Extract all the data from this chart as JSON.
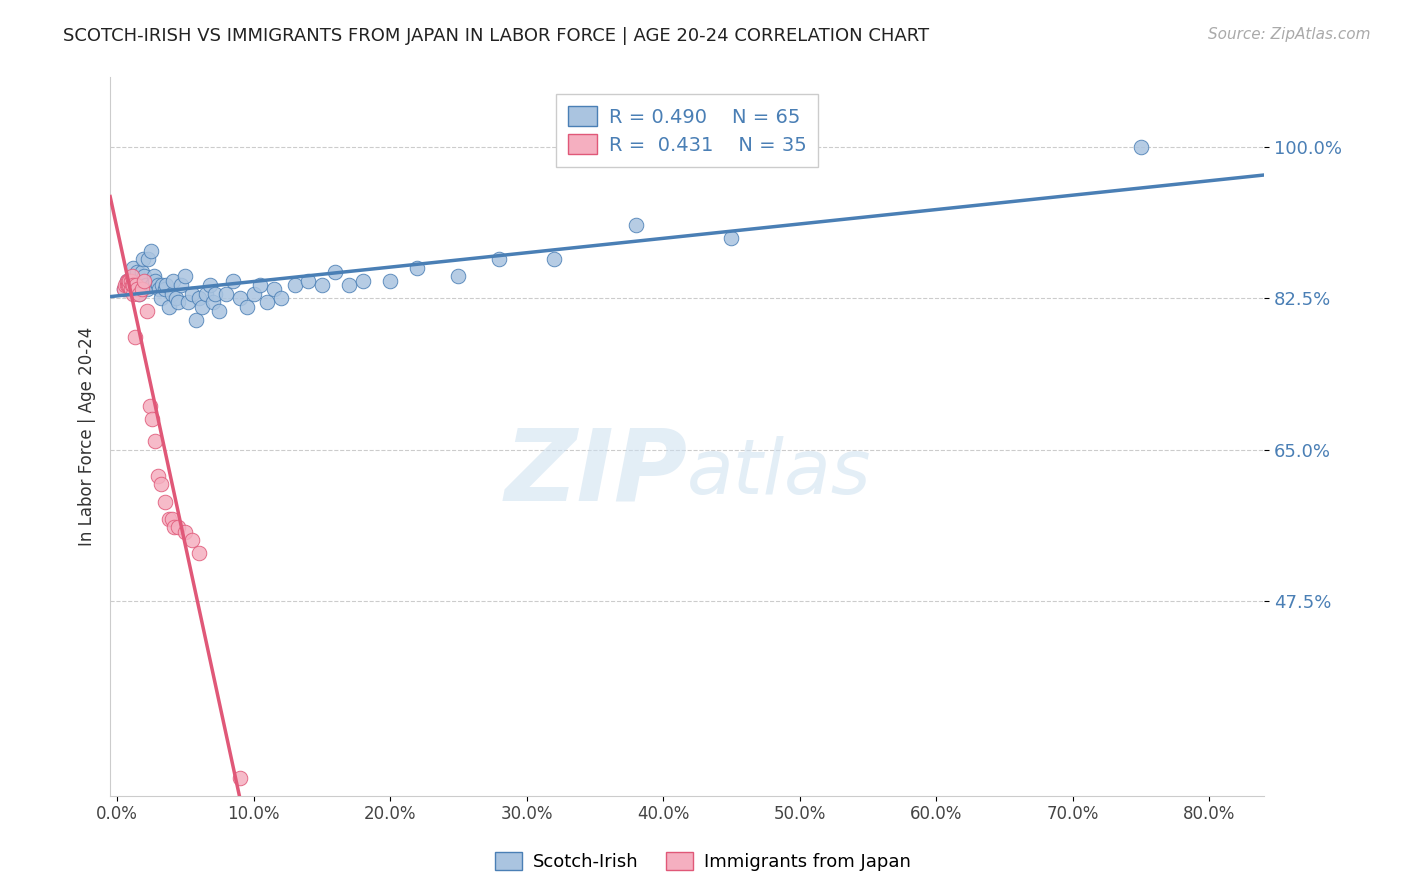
{
  "title": "SCOTCH-IRISH VS IMMIGRANTS FROM JAPAN IN LABOR FORCE | AGE 20-24 CORRELATION CHART",
  "source": "Source: ZipAtlas.com",
  "ylabel": "In Labor Force | Age 20-24",
  "x_ticks": [
    "0.0%",
    "10.0%",
    "20.0%",
    "30.0%",
    "40.0%",
    "50.0%",
    "60.0%",
    "70.0%",
    "80.0%"
  ],
  "x_tick_vals": [
    0.0,
    0.1,
    0.2,
    0.3,
    0.4,
    0.5,
    0.6,
    0.7,
    0.8
  ],
  "y_ticks": [
    "47.5%",
    "65.0%",
    "82.5%",
    "100.0%"
  ],
  "y_tick_vals": [
    0.475,
    0.65,
    0.825,
    1.0
  ],
  "y_min": 0.25,
  "y_max": 1.08,
  "x_min": -0.005,
  "x_max": 0.84,
  "legend_blue_label": "Scotch-Irish",
  "legend_pink_label": "Immigrants from Japan",
  "blue_R": "0.490",
  "blue_N": "65",
  "pink_R": "0.431",
  "pink_N": "35",
  "blue_color": "#aac4e0",
  "pink_color": "#f5afc0",
  "blue_line_color": "#4a7fb5",
  "pink_line_color": "#e05878",
  "watermark_zip": "ZIP",
  "watermark_atlas": "atlas",
  "blue_scatter_x": [
    0.005,
    0.007,
    0.008,
    0.012,
    0.013,
    0.014,
    0.015,
    0.016,
    0.017,
    0.018,
    0.019,
    0.02,
    0.021,
    0.022,
    0.023,
    0.025,
    0.026,
    0.027,
    0.028,
    0.03,
    0.031,
    0.032,
    0.033,
    0.035,
    0.036,
    0.038,
    0.04,
    0.041,
    0.043,
    0.045,
    0.047,
    0.05,
    0.052,
    0.055,
    0.058,
    0.06,
    0.062,
    0.065,
    0.068,
    0.07,
    0.072,
    0.075,
    0.08,
    0.085,
    0.09,
    0.095,
    0.1,
    0.105,
    0.11,
    0.115,
    0.12,
    0.13,
    0.14,
    0.15,
    0.16,
    0.17,
    0.18,
    0.2,
    0.22,
    0.25,
    0.28,
    0.32,
    0.38,
    0.45,
    0.75
  ],
  "blue_scatter_y": [
    0.835,
    0.845,
    0.84,
    0.86,
    0.845,
    0.84,
    0.855,
    0.83,
    0.84,
    0.855,
    0.87,
    0.85,
    0.84,
    0.835,
    0.87,
    0.88,
    0.84,
    0.85,
    0.845,
    0.84,
    0.835,
    0.825,
    0.84,
    0.835,
    0.84,
    0.815,
    0.83,
    0.845,
    0.825,
    0.82,
    0.84,
    0.85,
    0.82,
    0.83,
    0.8,
    0.825,
    0.815,
    0.83,
    0.84,
    0.82,
    0.83,
    0.81,
    0.83,
    0.845,
    0.825,
    0.815,
    0.83,
    0.84,
    0.82,
    0.835,
    0.825,
    0.84,
    0.845,
    0.84,
    0.855,
    0.84,
    0.845,
    0.845,
    0.86,
    0.85,
    0.87,
    0.87,
    0.91,
    0.895,
    1.0
  ],
  "pink_scatter_x": [
    0.005,
    0.006,
    0.007,
    0.007,
    0.008,
    0.008,
    0.009,
    0.009,
    0.01,
    0.01,
    0.011,
    0.011,
    0.012,
    0.012,
    0.013,
    0.014,
    0.015,
    0.016,
    0.018,
    0.02,
    0.022,
    0.024,
    0.026,
    0.028,
    0.03,
    0.032,
    0.035,
    0.038,
    0.04,
    0.042,
    0.045,
    0.05,
    0.055,
    0.06,
    0.09
  ],
  "pink_scatter_y": [
    0.835,
    0.84,
    0.84,
    0.845,
    0.84,
    0.845,
    0.84,
    0.845,
    0.835,
    0.845,
    0.84,
    0.85,
    0.83,
    0.84,
    0.78,
    0.84,
    0.835,
    0.83,
    0.835,
    0.845,
    0.81,
    0.7,
    0.685,
    0.66,
    0.62,
    0.61,
    0.59,
    0.57,
    0.57,
    0.56,
    0.56,
    0.555,
    0.545,
    0.53,
    0.27
  ]
}
